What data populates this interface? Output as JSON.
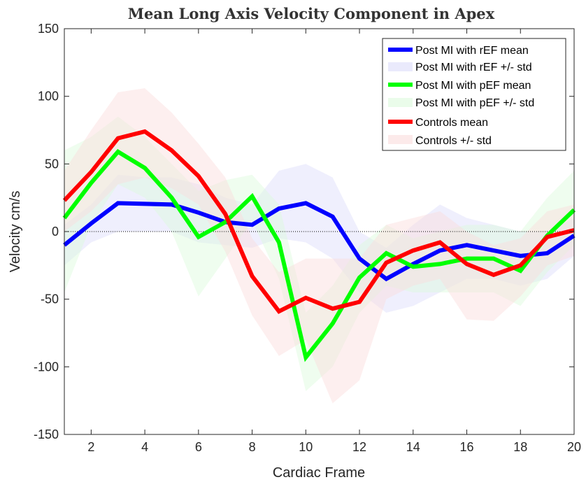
{
  "chart_data": {
    "type": "line",
    "title": "Mean Long Axis Velocity Component in Apex",
    "xlabel": "Cardiac Frame",
    "ylabel": "Velocity cm/s",
    "xlim": [
      1,
      20
    ],
    "ylim": [
      -150,
      150
    ],
    "xticks": [
      2,
      4,
      6,
      8,
      10,
      12,
      14,
      16,
      18,
      20
    ],
    "yticks": [
      -150,
      -100,
      -50,
      0,
      50,
      100,
      150
    ],
    "zero_line": true,
    "legend_position": "top-right",
    "x": [
      1,
      2,
      3,
      4,
      5,
      6,
      7,
      8,
      9,
      10,
      11,
      12,
      13,
      14,
      15,
      16,
      17,
      18,
      19,
      20
    ],
    "series": [
      {
        "name": "Post MI with rEF mean",
        "band_name": "Post MI with rEF +/- std",
        "color": "#0000ff",
        "band_color": "#dcdcfa",
        "values": [
          -10,
          6,
          21,
          20.5,
          20,
          14,
          7,
          5,
          17,
          21,
          11,
          -20,
          -35,
          -24,
          -14,
          -10,
          -14,
          -18,
          -16,
          -3
        ],
        "upper": [
          5,
          20,
          42,
          40,
          40,
          35,
          25,
          20,
          45,
          50,
          40,
          0,
          -12,
          5,
          20,
          10,
          5,
          0,
          0,
          10
        ],
        "lower": [
          -25,
          -8,
          0,
          0,
          0,
          -8,
          -10,
          -12,
          -5,
          -8,
          -20,
          -45,
          -60,
          -55,
          -45,
          -35,
          -35,
          -40,
          -35,
          -18
        ]
      },
      {
        "name": "Post MI with pEF mean",
        "band_name": "Post MI with pEF +/- std",
        "color": "#00ff00",
        "band_color": "#dcfadc",
        "values": [
          10,
          36,
          59,
          47,
          25,
          -4,
          7,
          26,
          -8,
          -93,
          -68,
          -34,
          -16,
          -26,
          -24,
          -20,
          -20,
          -29,
          -3,
          16
        ],
        "upper": [
          60,
          70,
          85,
          70,
          50,
          30,
          38,
          42,
          20,
          -60,
          -40,
          -10,
          5,
          -5,
          0,
          5,
          5,
          0,
          25,
          45
        ],
        "lower": [
          -45,
          5,
          35,
          25,
          0,
          -48,
          -20,
          8,
          -35,
          -118,
          -100,
          -60,
          -40,
          -45,
          -45,
          -45,
          -45,
          -55,
          -30,
          -10
        ]
      },
      {
        "name": "Controls mean",
        "band_name": "Controls +/- std",
        "color": "#ff0000",
        "band_color": "#fadcdc",
        "values": [
          23,
          44,
          69,
          74,
          60,
          41,
          13,
          -33,
          -59,
          -49,
          -57,
          -52,
          -23,
          -14,
          -8,
          -24,
          -32,
          -25,
          -4,
          1
        ],
        "upper": [
          45,
          75,
          103,
          106,
          88,
          65,
          40,
          -5,
          -30,
          -20,
          -20,
          -20,
          5,
          10,
          15,
          0,
          -10,
          -5,
          15,
          20
        ],
        "lower": [
          0,
          15,
          35,
          40,
          32,
          20,
          -15,
          -62,
          -92,
          -80,
          -127,
          -110,
          -50,
          -40,
          -35,
          -65,
          -66,
          -48,
          -25,
          -18
        ]
      }
    ]
  }
}
